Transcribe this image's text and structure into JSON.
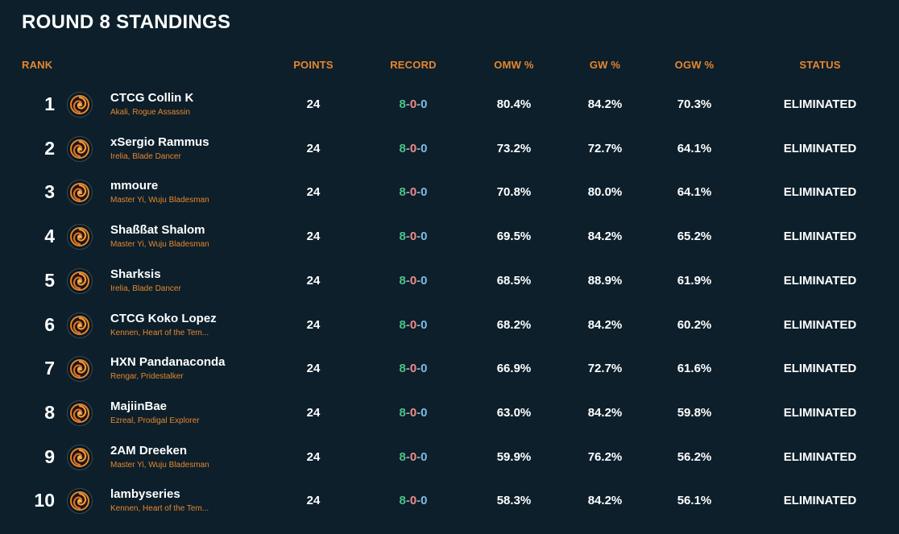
{
  "title": "ROUND 8 STANDINGS",
  "columns": {
    "rank": "RANK",
    "points": "POINTS",
    "record": "RECORD",
    "omw": "OMW %",
    "gw": "GW %",
    "ogw": "OGW %",
    "status": "STATUS"
  },
  "colors": {
    "accent": "#e8862c",
    "background": "#0c1f2b",
    "win": "#4cc38a",
    "loss": "#f08a8a",
    "draw": "#7fbbe6"
  },
  "rows": [
    {
      "rank": "1",
      "name": "CTCG Collin K",
      "deck": "Akali, Rogue Assassin",
      "points": "24",
      "wins": "8",
      "losses": "0",
      "draws": "0",
      "omw": "80.4%",
      "gw": "84.2%",
      "ogw": "70.3%",
      "status": "ELIMINATED",
      "icon": "legend-emblem-icon"
    },
    {
      "rank": "2",
      "name": "xSergio Rammus",
      "deck": "Irelia, Blade Dancer",
      "points": "24",
      "wins": "8",
      "losses": "0",
      "draws": "0",
      "omw": "73.2%",
      "gw": "72.7%",
      "ogw": "64.1%",
      "status": "ELIMINATED",
      "icon": "legend-emblem-icon"
    },
    {
      "rank": "3",
      "name": "mmoure",
      "deck": "Master Yi, Wuju Bladesman",
      "points": "24",
      "wins": "8",
      "losses": "0",
      "draws": "0",
      "omw": "70.8%",
      "gw": "80.0%",
      "ogw": "64.1%",
      "status": "ELIMINATED",
      "icon": "legend-emblem-icon"
    },
    {
      "rank": "4",
      "name": "Shaßßat Shalom",
      "deck": "Master Yi, Wuju Bladesman",
      "points": "24",
      "wins": "8",
      "losses": "0",
      "draws": "0",
      "omw": "69.5%",
      "gw": "84.2%",
      "ogw": "65.2%",
      "status": "ELIMINATED",
      "icon": "legend-emblem-icon"
    },
    {
      "rank": "5",
      "name": "Sharksis",
      "deck": "Irelia, Blade Dancer",
      "points": "24",
      "wins": "8",
      "losses": "0",
      "draws": "0",
      "omw": "68.5%",
      "gw": "88.9%",
      "ogw": "61.9%",
      "status": "ELIMINATED",
      "icon": "legend-emblem-icon"
    },
    {
      "rank": "6",
      "name": "CTCG Koko Lopez",
      "deck": "Kennen, Heart of the Tem...",
      "points": "24",
      "wins": "8",
      "losses": "0",
      "draws": "0",
      "omw": "68.2%",
      "gw": "84.2%",
      "ogw": "60.2%",
      "status": "ELIMINATED",
      "icon": "legend-emblem-icon"
    },
    {
      "rank": "7",
      "name": "HXN Pandanaconda",
      "deck": "Rengar, Pridestalker",
      "points": "24",
      "wins": "8",
      "losses": "0",
      "draws": "0",
      "omw": "66.9%",
      "gw": "72.7%",
      "ogw": "61.6%",
      "status": "ELIMINATED",
      "icon": "legend-emblem-icon"
    },
    {
      "rank": "8",
      "name": "MajiinBae",
      "deck": "Ezreal, Prodigal Explorer",
      "points": "24",
      "wins": "8",
      "losses": "0",
      "draws": "0",
      "omw": "63.0%",
      "gw": "84.2%",
      "ogw": "59.8%",
      "status": "ELIMINATED",
      "icon": "legend-emblem-icon"
    },
    {
      "rank": "9",
      "name": "2AM Dreeken",
      "deck": "Master Yi, Wuju Bladesman",
      "points": "24",
      "wins": "8",
      "losses": "0",
      "draws": "0",
      "omw": "59.9%",
      "gw": "76.2%",
      "ogw": "56.2%",
      "status": "ELIMINATED",
      "icon": "legend-emblem-icon"
    },
    {
      "rank": "10",
      "name": "lambyseries",
      "deck": "Kennen, Heart of the Tem...",
      "points": "24",
      "wins": "8",
      "losses": "0",
      "draws": "0",
      "omw": "58.3%",
      "gw": "84.2%",
      "ogw": "56.1%",
      "status": "ELIMINATED",
      "icon": "legend-emblem-icon"
    }
  ]
}
